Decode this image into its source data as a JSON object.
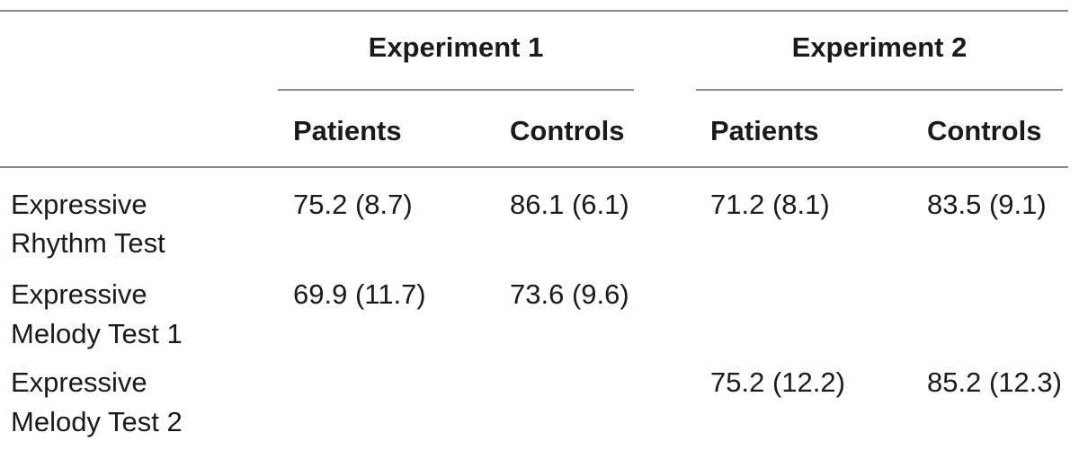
{
  "table": {
    "groups": [
      {
        "label": "Experiment 1"
      },
      {
        "label": "Experiment 2"
      }
    ],
    "columns": [
      "Patients",
      "Controls",
      "Patients",
      "Controls"
    ],
    "rows": [
      {
        "label_line1": "Expressive",
        "label_line2": "Rhythm Test",
        "values": [
          "75.2 (8.7)",
          "86.1 (6.1)",
          "71.2 (8.1)",
          "83.5 (9.1)"
        ]
      },
      {
        "label_line1": "Expressive",
        "label_line2": "Melody Test 1",
        "values": [
          "69.9 (11.7)",
          "73.6 (9.6)",
          "",
          ""
        ]
      },
      {
        "label_line1": "Expressive",
        "label_line2": "Melody Test 2",
        "values": [
          "",
          "",
          "75.2 (12.2)",
          "85.2 (12.3)"
        ]
      }
    ]
  }
}
